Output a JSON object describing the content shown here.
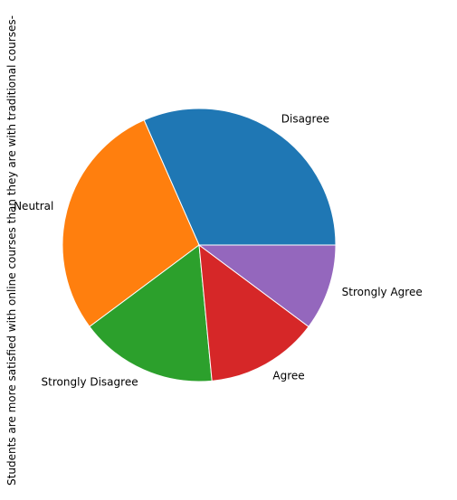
{
  "chart_data": {
    "type": "pie",
    "ylabel": "Students are more satisfied with online courses than they are with traditional courses-",
    "start_angle_deg": 0,
    "direction": "counterclockwise",
    "categories": [
      "Disagree",
      "Neutral",
      "Strongly Disagree",
      "Agree",
      "Strongly Agree"
    ],
    "values": [
      31.6,
      28.6,
      16.3,
      13.3,
      10.2
    ],
    "colors": [
      "#1f77b4",
      "#ff7f0e",
      "#2ca02c",
      "#d62728",
      "#9467bd"
    ],
    "legend": "none"
  }
}
